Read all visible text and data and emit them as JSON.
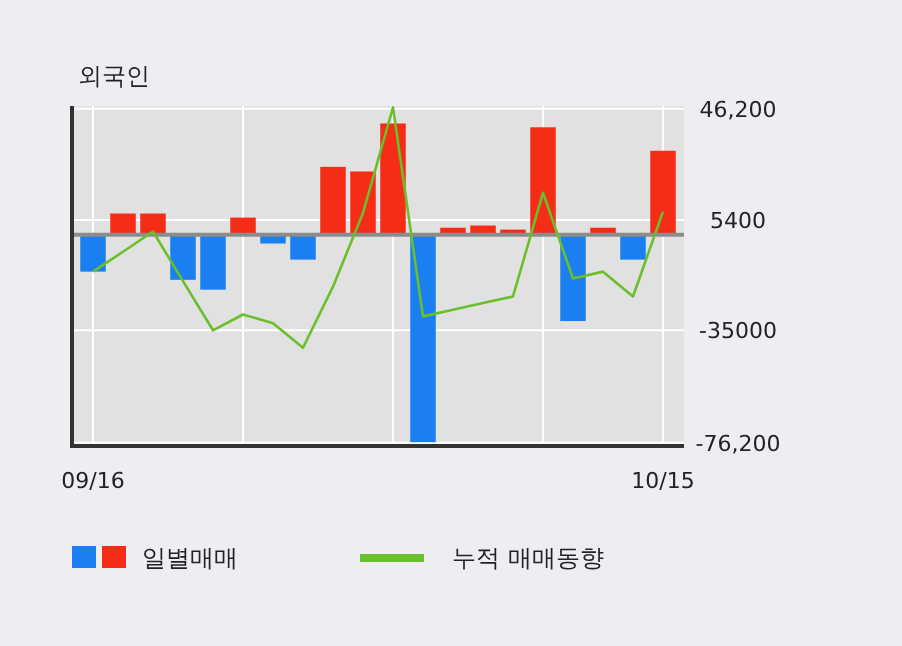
{
  "chart_data": {
    "type": "bar",
    "title": "외국인",
    "categories": [
      "09/16",
      null,
      null,
      null,
      null,
      null,
      null,
      null,
      null,
      null,
      null,
      null,
      null,
      null,
      null,
      null,
      null,
      null,
      null,
      "10/15"
    ],
    "series": [
      {
        "name": "일별매매",
        "colors": [
          "#1a7ff0",
          "#f52d17",
          "#f52d17",
          "#1a7ff0",
          "#1a7ff0",
          "#f52d17",
          "#1a7ff0",
          "#1a7ff0",
          "#f52d17",
          "#f52d17",
          "#f52d17",
          "#1a7ff0",
          "#f52d17",
          "#f52d17",
          "#f52d17",
          "#f52d17",
          "#1a7ff0",
          "#f52d17",
          "#1a7ff0",
          "#f52d17"
        ],
        "values": [
          -13500,
          7800,
          7800,
          -16500,
          -20100,
          6300,
          -3200,
          -9100,
          24900,
          23200,
          40800,
          -76000,
          2600,
          3400,
          1900,
          39400,
          -31600,
          2600,
          -9100,
          30800
        ]
      },
      {
        "name": "누적 매매동향",
        "type": "line",
        "color": "#6abf2a",
        "values": [
          -13500,
          -6200,
          1200,
          -17000,
          -35000,
          -29200,
          -32400,
          -41400,
          -19000,
          8000,
          46700,
          -29900,
          -27500,
          -25000,
          -22600,
          15400,
          -16000,
          -13500,
          -22600,
          8500
        ]
      }
    ],
    "ylim": [
      -77400,
      47200
    ],
    "yticks": [
      {
        "value": 46200,
        "label": "46,200"
      },
      5400,
      -35000,
      {
        "value": -76200,
        "label": "-76,200"
      }
    ],
    "ref_lines": [
      {
        "axis": "y",
        "value": 0,
        "color": "#8c8c8c"
      }
    ],
    "grid": true,
    "legend": "bottom left"
  }
}
